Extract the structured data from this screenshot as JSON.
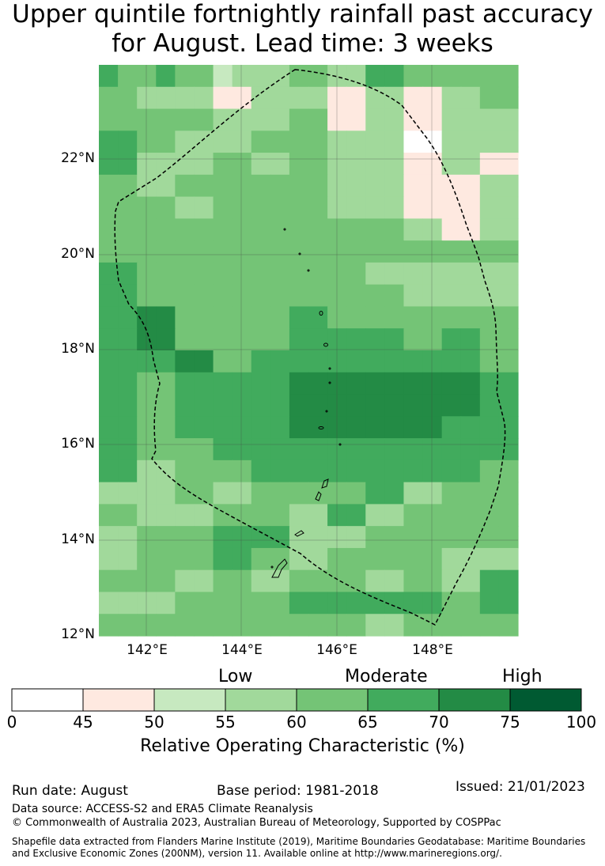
{
  "title_line1": "Upper quintile fortnightly rainfall past accuracy",
  "title_line2": "for August. Lead time: 3 weeks",
  "map": {
    "lat_labels": [
      "22°N",
      "20°N",
      "18°N",
      "16°N",
      "14°N",
      "12°N"
    ],
    "lon_labels": [
      "142°E",
      "144°E",
      "146°E",
      "148°E"
    ],
    "grid": [
      [
        4,
        3,
        3,
        4,
        3,
        3,
        1,
        2,
        2,
        2,
        3,
        3,
        2,
        2,
        4,
        4,
        3,
        3,
        3,
        3,
        3,
        3
      ],
      [
        3,
        3,
        2,
        2,
        2,
        2,
        0,
        0,
        2,
        2,
        2,
        2,
        0,
        0,
        2,
        2,
        0,
        0,
        2,
        2,
        3,
        3
      ],
      [
        3,
        3,
        3,
        3,
        3,
        3,
        2,
        2,
        2,
        2,
        3,
        3,
        0,
        0,
        2,
        2,
        0,
        0,
        2,
        2,
        2,
        2
      ],
      [
        4,
        4,
        3,
        3,
        2,
        2,
        2,
        2,
        3,
        3,
        3,
        3,
        2,
        2,
        2,
        2,
        -1,
        -1,
        2,
        2,
        2,
        2
      ],
      [
        4,
        4,
        2,
        2,
        2,
        2,
        3,
        3,
        2,
        2,
        3,
        3,
        2,
        2,
        2,
        2,
        0,
        0,
        2,
        2,
        0,
        0
      ],
      [
        3,
        3,
        2,
        2,
        3,
        3,
        3,
        3,
        3,
        3,
        3,
        3,
        2,
        2,
        2,
        2,
        0,
        0,
        0,
        0,
        2,
        2
      ],
      [
        3,
        3,
        3,
        3,
        2,
        2,
        3,
        3,
        3,
        3,
        3,
        3,
        2,
        2,
        2,
        2,
        0,
        0,
        0,
        0,
        2,
        2
      ],
      [
        3,
        3,
        3,
        3,
        3,
        3,
        3,
        3,
        3,
        3,
        3,
        3,
        3,
        3,
        3,
        3,
        2,
        2,
        0,
        0,
        2,
        2
      ],
      [
        3,
        3,
        3,
        3,
        3,
        3,
        3,
        3,
        3,
        3,
        3,
        3,
        3,
        3,
        3,
        3,
        3,
        3,
        3,
        3,
        3,
        3
      ],
      [
        4,
        4,
        3,
        3,
        3,
        3,
        3,
        3,
        3,
        3,
        3,
        3,
        3,
        3,
        2,
        2,
        2,
        2,
        2,
        2,
        2,
        2
      ],
      [
        4,
        4,
        3,
        3,
        3,
        3,
        3,
        3,
        3,
        3,
        3,
        3,
        3,
        3,
        3,
        3,
        2,
        2,
        2,
        2,
        2,
        2
      ],
      [
        4,
        4,
        5,
        5,
        3,
        3,
        3,
        3,
        3,
        3,
        4,
        4,
        3,
        3,
        3,
        3,
        3,
        3,
        3,
        3,
        3,
        3
      ],
      [
        4,
        4,
        5,
        5,
        3,
        3,
        3,
        3,
        3,
        3,
        4,
        4,
        4,
        4,
        4,
        4,
        3,
        3,
        4,
        4,
        3,
        3
      ],
      [
        4,
        4,
        4,
        4,
        5,
        5,
        3,
        3,
        4,
        4,
        4,
        4,
        4,
        4,
        4,
        4,
        4,
        4,
        4,
        4,
        3,
        3
      ],
      [
        4,
        4,
        3,
        3,
        4,
        4,
        4,
        4,
        4,
        4,
        5,
        5,
        5,
        5,
        5,
        5,
        5,
        5,
        5,
        5,
        4,
        4
      ],
      [
        4,
        4,
        3,
        3,
        4,
        4,
        4,
        4,
        4,
        4,
        5,
        5,
        5,
        5,
        5,
        5,
        5,
        5,
        5,
        5,
        4,
        4
      ],
      [
        4,
        4,
        3,
        3,
        4,
        4,
        4,
        4,
        4,
        4,
        5,
        5,
        5,
        5,
        5,
        5,
        5,
        5,
        4,
        4,
        4,
        4
      ],
      [
        4,
        4,
        3,
        3,
        3,
        3,
        4,
        4,
        4,
        4,
        4,
        4,
        4,
        4,
        4,
        4,
        4,
        4,
        4,
        4,
        4,
        4
      ],
      [
        4,
        4,
        2,
        2,
        3,
        3,
        3,
        3,
        4,
        4,
        4,
        4,
        4,
        4,
        4,
        4,
        4,
        4,
        4,
        4,
        3,
        3
      ],
      [
        2,
        2,
        2,
        2,
        3,
        3,
        2,
        2,
        3,
        3,
        3,
        3,
        3,
        3,
        4,
        4,
        2,
        2,
        3,
        3,
        3,
        3
      ],
      [
        3,
        3,
        2,
        2,
        2,
        2,
        3,
        3,
        3,
        3,
        2,
        2,
        4,
        4,
        2,
        2,
        3,
        3,
        3,
        3,
        3,
        3
      ],
      [
        2,
        2,
        3,
        3,
        3,
        3,
        4,
        4,
        4,
        4,
        2,
        2,
        2,
        2,
        3,
        3,
        3,
        3,
        3,
        3,
        3,
        3
      ],
      [
        2,
        2,
        3,
        3,
        3,
        3,
        4,
        4,
        3,
        3,
        2,
        2,
        3,
        3,
        3,
        3,
        3,
        3,
        2,
        2,
        2,
        2
      ],
      [
        3,
        3,
        3,
        3,
        2,
        2,
        3,
        3,
        2,
        2,
        3,
        3,
        3,
        3,
        2,
        2,
        3,
        3,
        2,
        2,
        4,
        4
      ],
      [
        2,
        2,
        2,
        2,
        3,
        3,
        3,
        3,
        3,
        3,
        4,
        4,
        4,
        4,
        4,
        4,
        4,
        4,
        3,
        3,
        4,
        4
      ],
      [
        3,
        3,
        3,
        3,
        3,
        3,
        3,
        3,
        3,
        3,
        3,
        3,
        3,
        3,
        2,
        2,
        3,
        3,
        3,
        3,
        3,
        3
      ]
    ]
  },
  "colorbar": {
    "categories": [
      "Low",
      "Moderate",
      "High"
    ],
    "ticks": [
      "0",
      "45",
      "50",
      "55",
      "60",
      "65",
      "70",
      "75",
      "100"
    ],
    "colors": [
      "#ffffff",
      "#fee9e0",
      "#c7e9c0",
      "#a1d99b",
      "#74c476",
      "#41ab5d",
      "#238b45",
      "#005a32"
    ],
    "title": "Relative Operating Characteristic (%)"
  },
  "footer": {
    "run_date": "Run date: August",
    "base_period": "Base period: 1981-2018",
    "issued": "Issued: 21/01/2023",
    "source": "Data source: ACCESS-S2 and ERA5 Climate Reanalysis",
    "copyright": "© Commonwealth of Australia 2023, Australian Bureau of Meteorology, Supported by COSPPac",
    "shapefile_1": "Shapefile data extracted from Flanders Marine Institute (2019), Maritime Boundaries Geodatabase: Maritime Boundaries",
    "shapefile_2": "and Exclusive Economic Zones (200NM), version 11. Available online at http://www.marineregions.org/."
  }
}
